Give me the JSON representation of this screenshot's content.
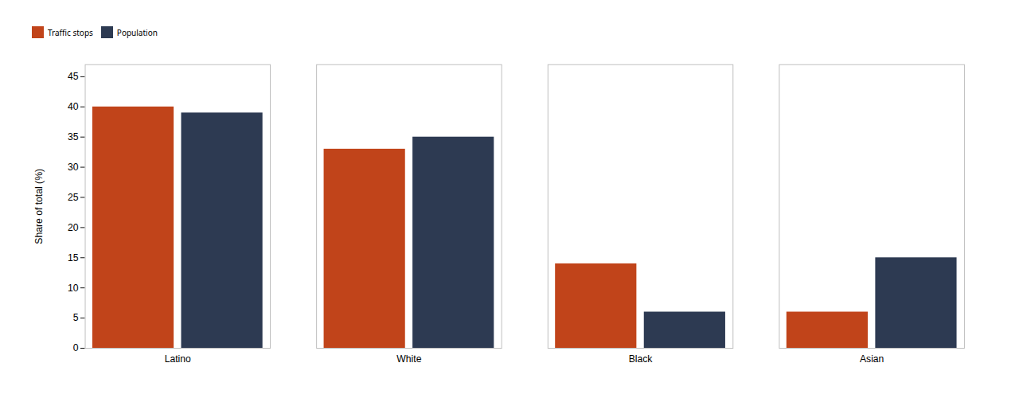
{
  "chart_data": {
    "type": "bar",
    "ylabel": "Share of total (%)",
    "categories": [
      "Latino",
      "White",
      "Black",
      "Asian"
    ],
    "series": [
      {
        "name": "Traffic stops",
        "color": "#C1441A",
        "values": [
          40,
          33,
          14,
          6
        ]
      },
      {
        "name": "Population",
        "color": "#2D3A52",
        "values": [
          39,
          35,
          6,
          15
        ]
      }
    ],
    "ylim": [
      0,
      47
    ],
    "yticks": [
      0,
      5,
      10,
      15,
      20,
      25,
      30,
      35,
      40,
      45
    ],
    "grid": false,
    "legend": "top"
  }
}
